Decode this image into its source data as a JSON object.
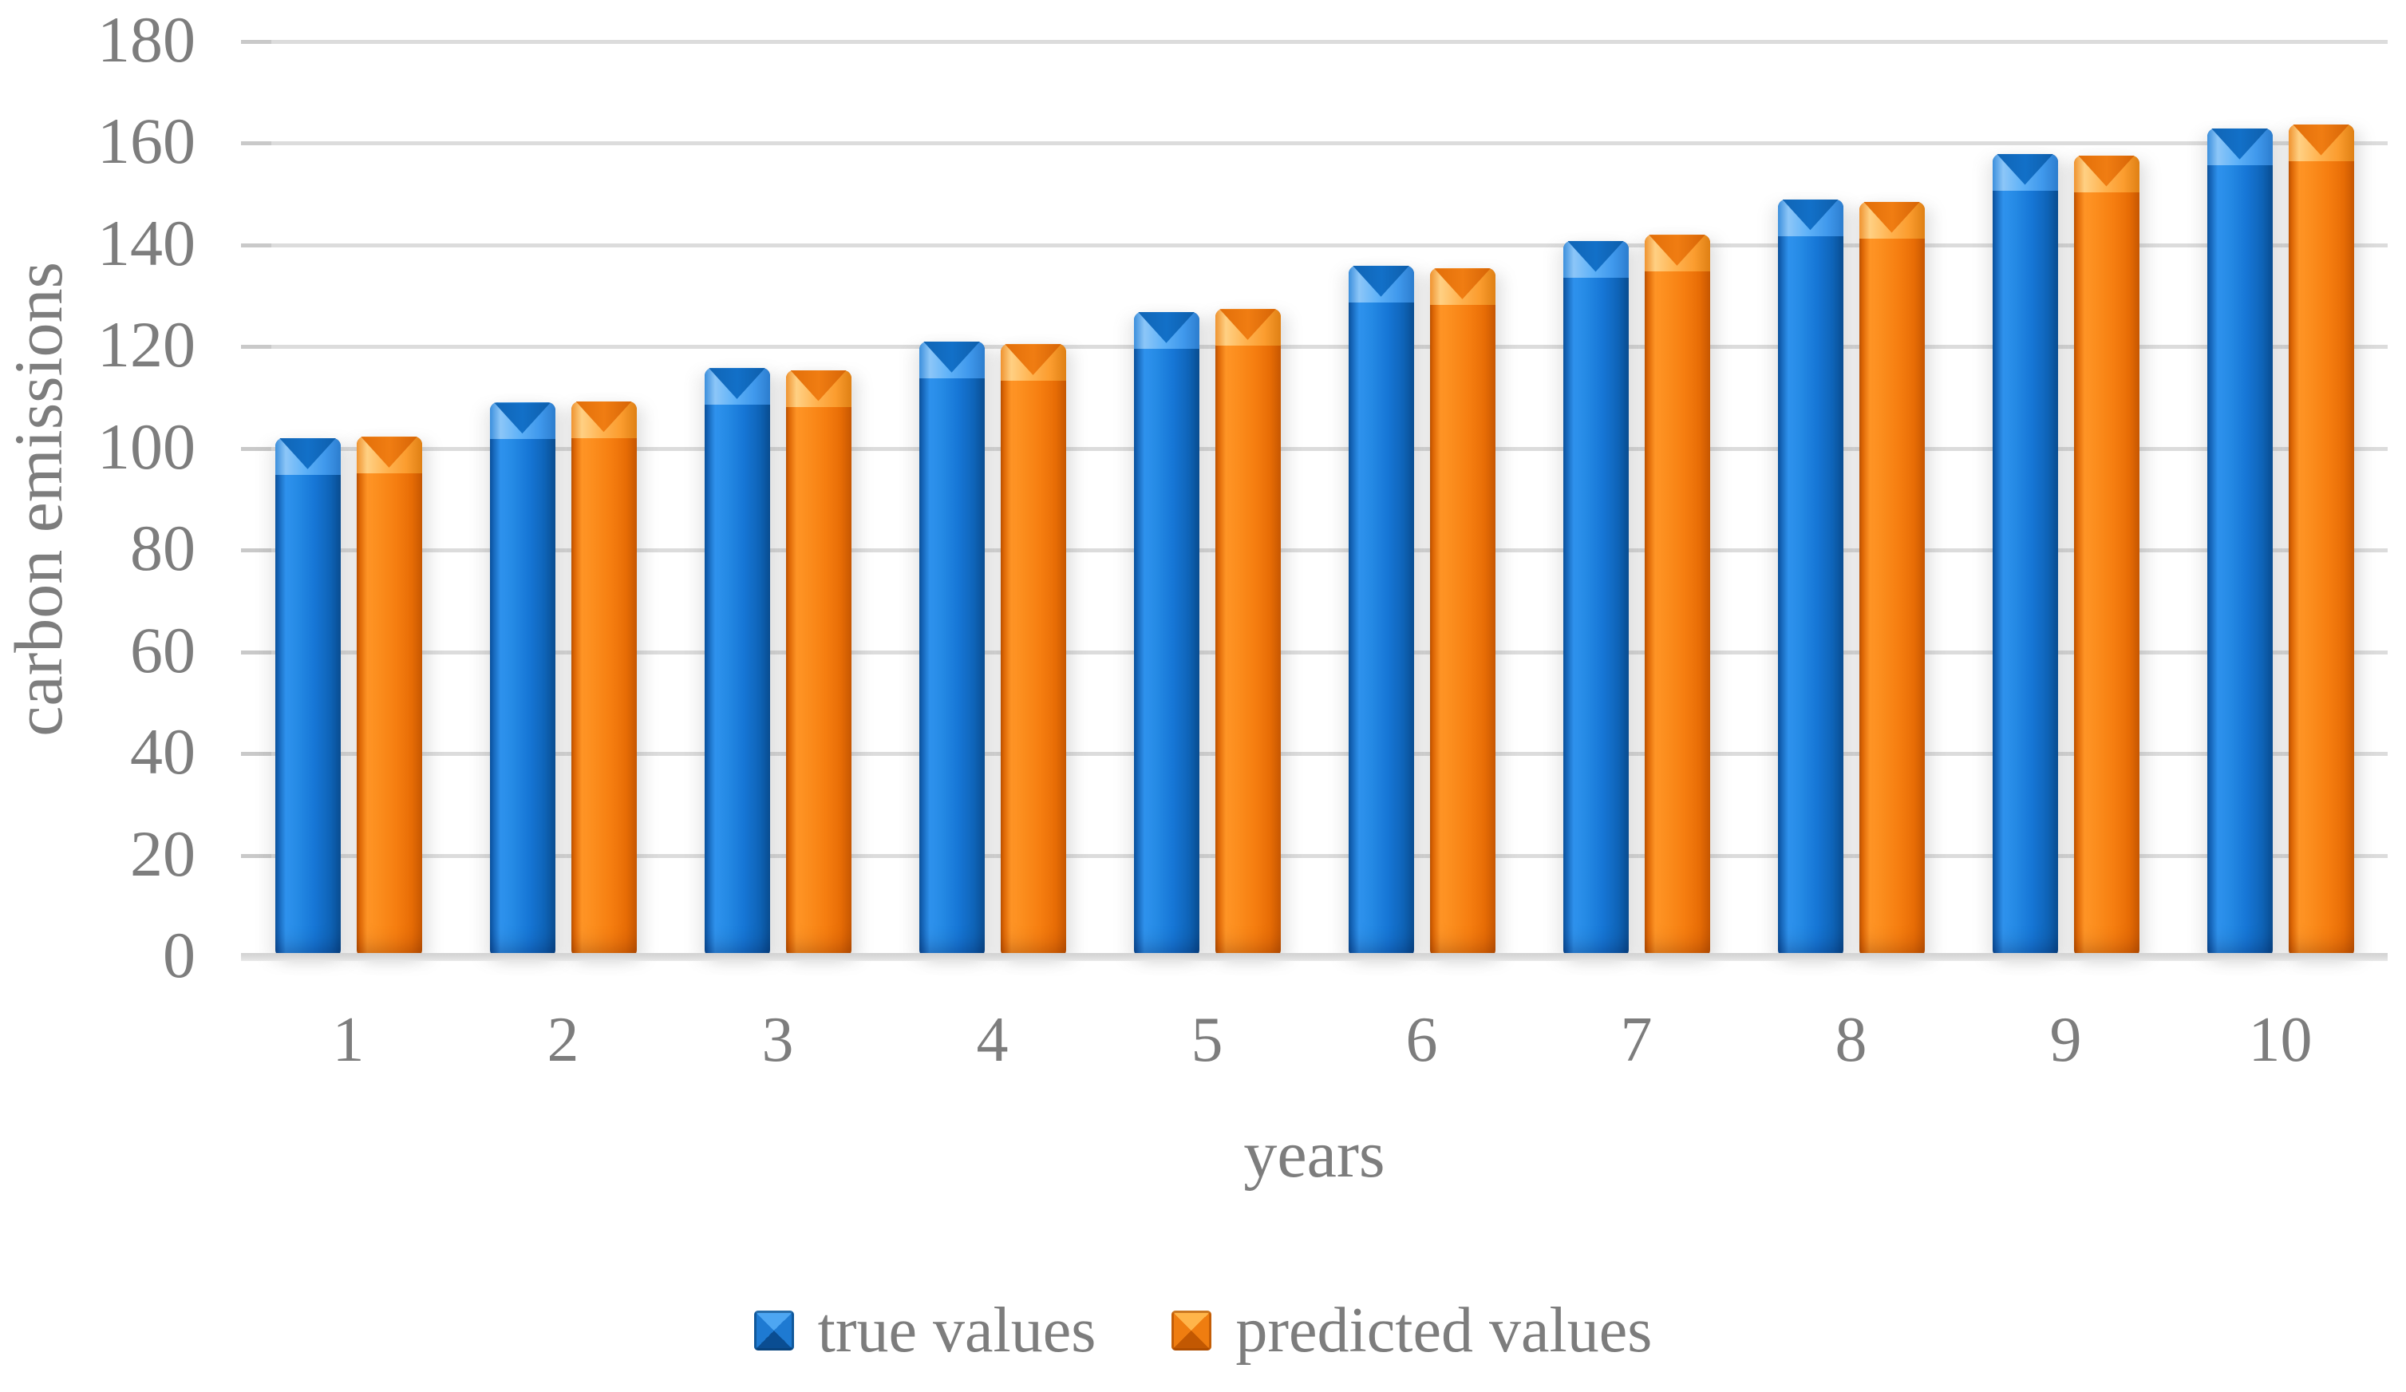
{
  "figure": {
    "background": "#ffffff",
    "text_color": "#7d7d7d",
    "gridline_color": "#dcdcdc"
  },
  "chart_data": {
    "type": "bar",
    "title": "",
    "xlabel": "years",
    "ylabel": "carbon emissions",
    "categories": [
      "1",
      "2",
      "3",
      "4",
      "5",
      "6",
      "7",
      "8",
      "9",
      "10"
    ],
    "series": [
      {
        "name": "true values",
        "color": "#1374D4",
        "values": [
          102.0,
          109.0,
          115.8,
          121.0,
          126.8,
          135.9,
          140.8,
          149.0,
          157.9,
          162.9
        ]
      },
      {
        "name": "predicted values",
        "color": "#F57E10",
        "values": [
          102.3,
          109.3,
          115.4,
          120.5,
          127.4,
          135.4,
          142.0,
          148.5,
          157.6,
          163.7
        ]
      }
    ],
    "ylim": [
      0,
      180
    ],
    "ytick_step": 20,
    "grid": true,
    "legend_position": "bottom"
  }
}
